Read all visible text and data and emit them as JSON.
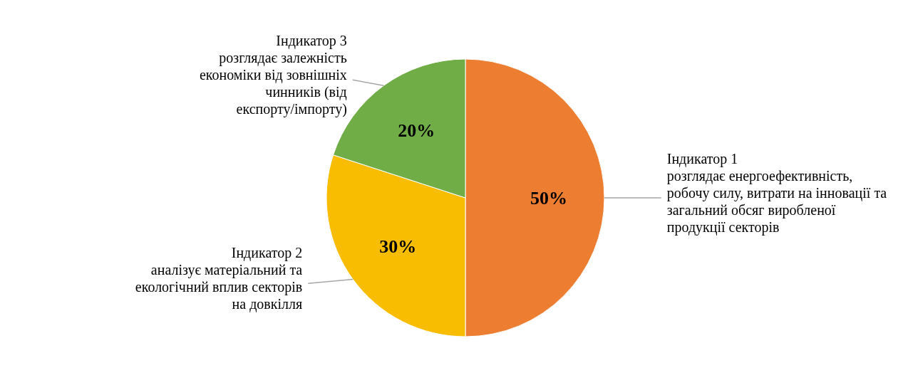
{
  "chart_data": {
    "type": "pie",
    "categories": [
      "Індикатор 1\nрозглядає енергоефективність,\nробочу силу, витрати на інновації та\nзагальний обсяг виробленої\nпродукції секторів",
      "Індикатор 2\nаналізує матеріальний та\nекологічний вплив секторів\nна довкілля",
      "Індикатор 3\nрозглядає залежність\nекономіки від зовнішніх\nчинників (від\nекспорту/імпорту)"
    ],
    "values": [
      50,
      30,
      20
    ],
    "colors": [
      "#ed7d31",
      "#f8bc00",
      "#70ad47"
    ],
    "value_labels": [
      "50%",
      "30%",
      "20%"
    ]
  }
}
